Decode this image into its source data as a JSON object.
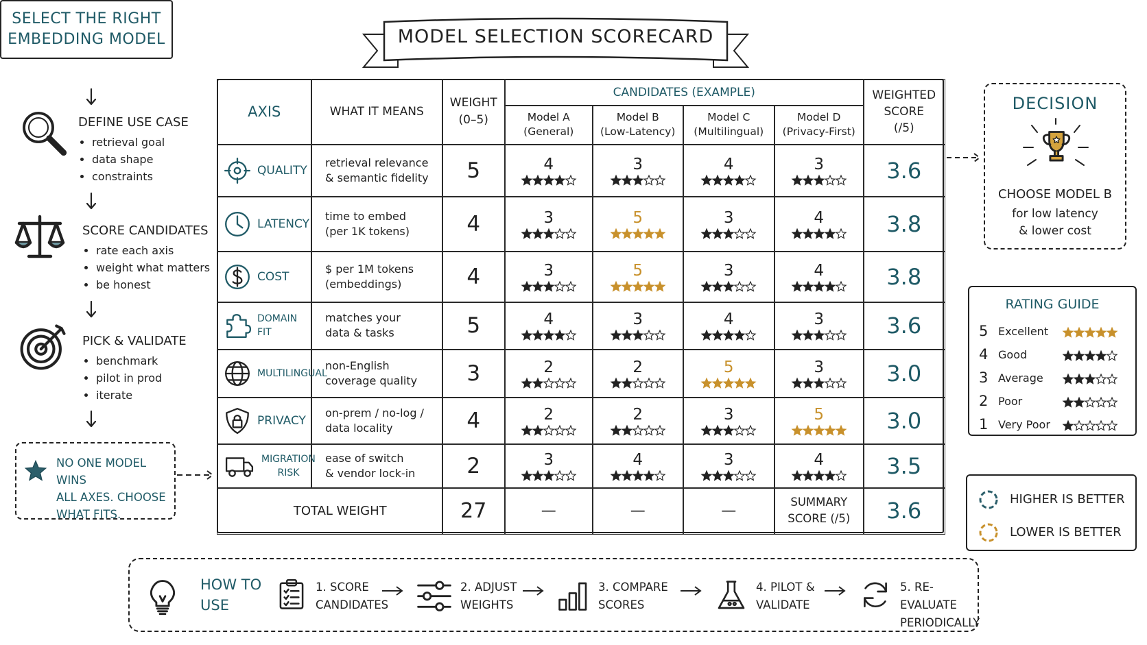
{
  "header": {
    "title": "SELECT THE RIGHT\nEMBEDDING MODEL"
  },
  "steps": [
    {
      "title": "DEFINE USE CASE",
      "items": [
        "retrieval goal",
        "data shape",
        "constraints"
      ]
    },
    {
      "title": "SCORE CANDIDATES",
      "items": [
        "rate each axis",
        "weight what matters",
        "be honest"
      ]
    },
    {
      "title": "PICK & VALIDATE",
      "items": [
        "benchmark",
        "pilot in prod",
        "iterate"
      ]
    }
  ],
  "note": "NO ONE MODEL WINS\nALL AXES.  CHOOSE\nWHAT FITS.",
  "banner": "MODEL SELECTION SCORECARD",
  "table": {
    "headers": {
      "axis": "AXIS",
      "meaning": "WHAT IT MEANS",
      "weight": "WEIGHT\n(0–5)",
      "candidates": "CANDIDATES (EXAMPLE)",
      "score": "WEIGHTED\nSCORE\n(/5)"
    },
    "models": [
      "Model A\n(General)",
      "Model B\n(Low-Latency)",
      "Model C\n(Multilingual)",
      "Model D\n(Privacy-First)"
    ],
    "rows": [
      {
        "axis": "QUALITY",
        "meaning": "retrieval relevance\n& semantic fidelity",
        "weight": 5,
        "ratings": [
          4,
          3,
          4,
          3
        ],
        "score": "3.6"
      },
      {
        "axis": "LATENCY",
        "meaning": "time to embed\n(per 1K tokens)",
        "weight": 4,
        "ratings": [
          3,
          5,
          3,
          4
        ],
        "score": "3.8"
      },
      {
        "axis": "COST",
        "meaning": "$ per 1M tokens\n(embeddings)",
        "weight": 4,
        "ratings": [
          3,
          5,
          3,
          4
        ],
        "score": "3.8"
      },
      {
        "axis": "DOMAIN FIT",
        "meaning": "matches your\ndata & tasks",
        "weight": 5,
        "ratings": [
          4,
          3,
          4,
          3
        ],
        "score": "3.6"
      },
      {
        "axis": "MULTILINGUAL",
        "meaning": "non-English\ncoverage quality",
        "weight": 3,
        "ratings": [
          2,
          2,
          5,
          3
        ],
        "score": "3.0"
      },
      {
        "axis": "PRIVACY",
        "meaning": "on-prem / no-log /\ndata locality",
        "weight": 4,
        "ratings": [
          2,
          2,
          3,
          5
        ],
        "score": "3.0"
      },
      {
        "axis": "MIGRATION\nRISK",
        "meaning": "ease of switch\n& vendor lock-in",
        "weight": 2,
        "ratings": [
          3,
          4,
          3,
          4
        ],
        "score": "3.5"
      }
    ],
    "total": {
      "label": "TOTAL WEIGHT",
      "weight": 27,
      "dashes": [
        "—",
        "—",
        "—"
      ],
      "summary_label": "SUMMARY\nSCORE (/5)",
      "summary": "3.6"
    }
  },
  "decision": {
    "title": "DECISION",
    "choice": "CHOOSE MODEL B",
    "reason": "for low latency\n& lower cost"
  },
  "rating_guide": {
    "title": "RATING GUIDE",
    "levels": [
      {
        "value": 5,
        "label": "Excellent"
      },
      {
        "value": 4,
        "label": "Good"
      },
      {
        "value": 3,
        "label": "Average"
      },
      {
        "value": 2,
        "label": "Poor"
      },
      {
        "value": 1,
        "label": "Very Poor"
      }
    ],
    "highlight_color": "#c8912c"
  },
  "legend": [
    {
      "label": "HIGHER IS BETTER",
      "color": "#2c5f6b"
    },
    {
      "label": "LOWER IS BETTER",
      "color": "#c8912c"
    }
  ],
  "how_to": {
    "title": "HOW TO\nUSE",
    "steps": [
      "1. SCORE\nCANDIDATES",
      "2. ADJUST\nWEIGHTS",
      "3. COMPARE\nSCORES",
      "4. PILOT &\nVALIDATE",
      "5. RE-EVALUATE\nPERIODICALLY"
    ]
  }
}
